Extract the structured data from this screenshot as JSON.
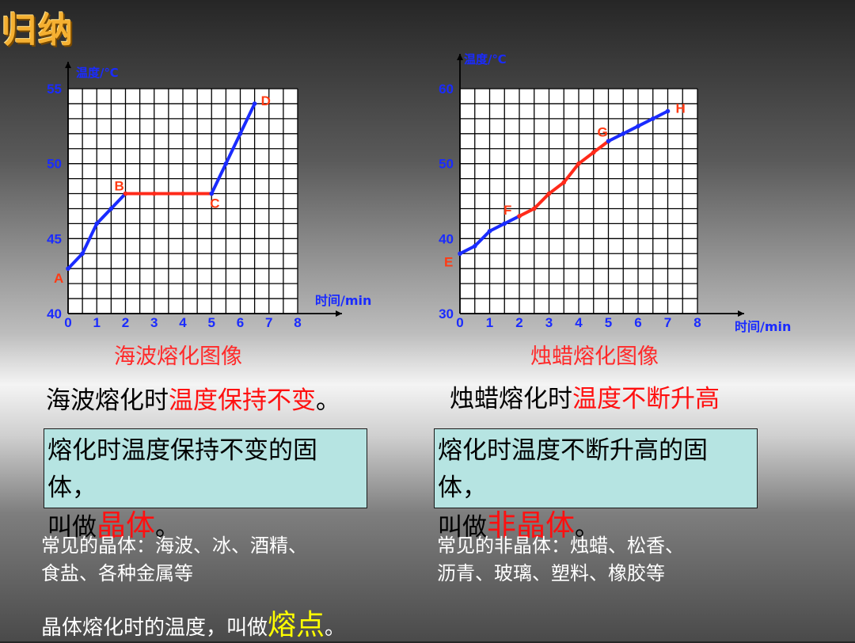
{
  "title": "归纳",
  "chart_data": [
    {
      "type": "line",
      "ylabel": "温度/℃",
      "xlabel": "时间/min",
      "caption": "海波熔化图像",
      "x_ticks": [
        "0",
        "1",
        "2",
        "3",
        "4",
        "5",
        "6",
        "7",
        "8"
      ],
      "y_ticks": [
        "40",
        "45",
        "50",
        "55"
      ],
      "xlim": [
        0,
        8
      ],
      "ylim": [
        40,
        55
      ],
      "series": [
        {
          "segment": "solid",
          "color": "#1a2bff",
          "points": [
            [
              0,
              43
            ],
            [
              0.5,
              44
            ],
            [
              1,
              46
            ],
            [
              1.5,
              47
            ],
            [
              2,
              48
            ]
          ]
        },
        {
          "segment": "melting",
          "color": "#ff2a1a",
          "points": [
            [
              2,
              48
            ],
            [
              3,
              48
            ],
            [
              4,
              48
            ],
            [
              5,
              48
            ]
          ]
        },
        {
          "segment": "liquid",
          "color": "#1a2bff",
          "points": [
            [
              5,
              48
            ],
            [
              5.5,
              50
            ],
            [
              6,
              52
            ],
            [
              6.5,
              54
            ]
          ]
        }
      ],
      "point_labels": [
        {
          "label": "A",
          "x": 0,
          "y": 43
        },
        {
          "label": "B",
          "x": 2,
          "y": 48
        },
        {
          "label": "C",
          "x": 5,
          "y": 48
        },
        {
          "label": "D",
          "x": 6.5,
          "y": 54
        }
      ]
    },
    {
      "type": "line",
      "ylabel": "温度/℃",
      "xlabel": "时间/min",
      "caption": "烛蜡熔化图像",
      "x_ticks": [
        "0",
        "1",
        "2",
        "3",
        "4",
        "5",
        "6",
        "7",
        "8"
      ],
      "y_ticks": [
        "30",
        "40",
        "50",
        "60"
      ],
      "xlim": [
        0,
        8
      ],
      "ylim": [
        30,
        60
      ],
      "series": [
        {
          "segment": "before",
          "color": "#1a2bff",
          "points": [
            [
              0,
              38
            ],
            [
              0.5,
              39
            ],
            [
              1,
              41
            ],
            [
              1.5,
              42
            ],
            [
              2,
              43
            ]
          ]
        },
        {
          "segment": "softening",
          "color": "#ff2a1a",
          "points": [
            [
              2,
              43
            ],
            [
              2.5,
              44
            ],
            [
              3,
              46
            ],
            [
              3.5,
              47.5
            ],
            [
              4,
              50
            ],
            [
              4.5,
              51.5
            ],
            [
              5,
              53
            ]
          ]
        },
        {
          "segment": "after",
          "color": "#1a2bff",
          "points": [
            [
              5,
              53
            ],
            [
              5.5,
              54
            ],
            [
              6,
              55
            ],
            [
              6.5,
              56
            ],
            [
              7,
              57
            ]
          ]
        }
      ],
      "point_labels": [
        {
          "label": "E",
          "x": 0,
          "y": 38
        },
        {
          "label": "F",
          "x": 2,
          "y": 43
        },
        {
          "label": "G",
          "x": 5,
          "y": 53
        },
        {
          "label": "H",
          "x": 7,
          "y": 57
        }
      ]
    }
  ],
  "left": {
    "statement_a": "海波熔化时",
    "statement_b": "温度保持不变",
    "statement_c": "。",
    "box_line1": "熔化时温度保持不变的固体，",
    "box_line2_a": "叫做",
    "box_line2_b": "晶体",
    "box_line2_c": "。",
    "examples_line1": "常见的晶体：海波、冰、酒精、",
    "examples_line2": "食盐、各种金属等"
  },
  "right": {
    "statement_a": "烛蜡熔化时",
    "statement_b": "温度不断升高",
    "box_line1": "熔化时温度不断升高的固体，",
    "box_line2_a": "叫做",
    "box_line2_b": "非晶体",
    "box_line2_c": "。",
    "examples_line1": "常见的非晶体：烛蜡、松香、",
    "examples_line2": "沥青、玻璃、塑料、橡胶等"
  },
  "footer": {
    "text_a": "晶体熔化时的温度，叫做",
    "text_b": "熔点",
    "text_c": "。"
  }
}
